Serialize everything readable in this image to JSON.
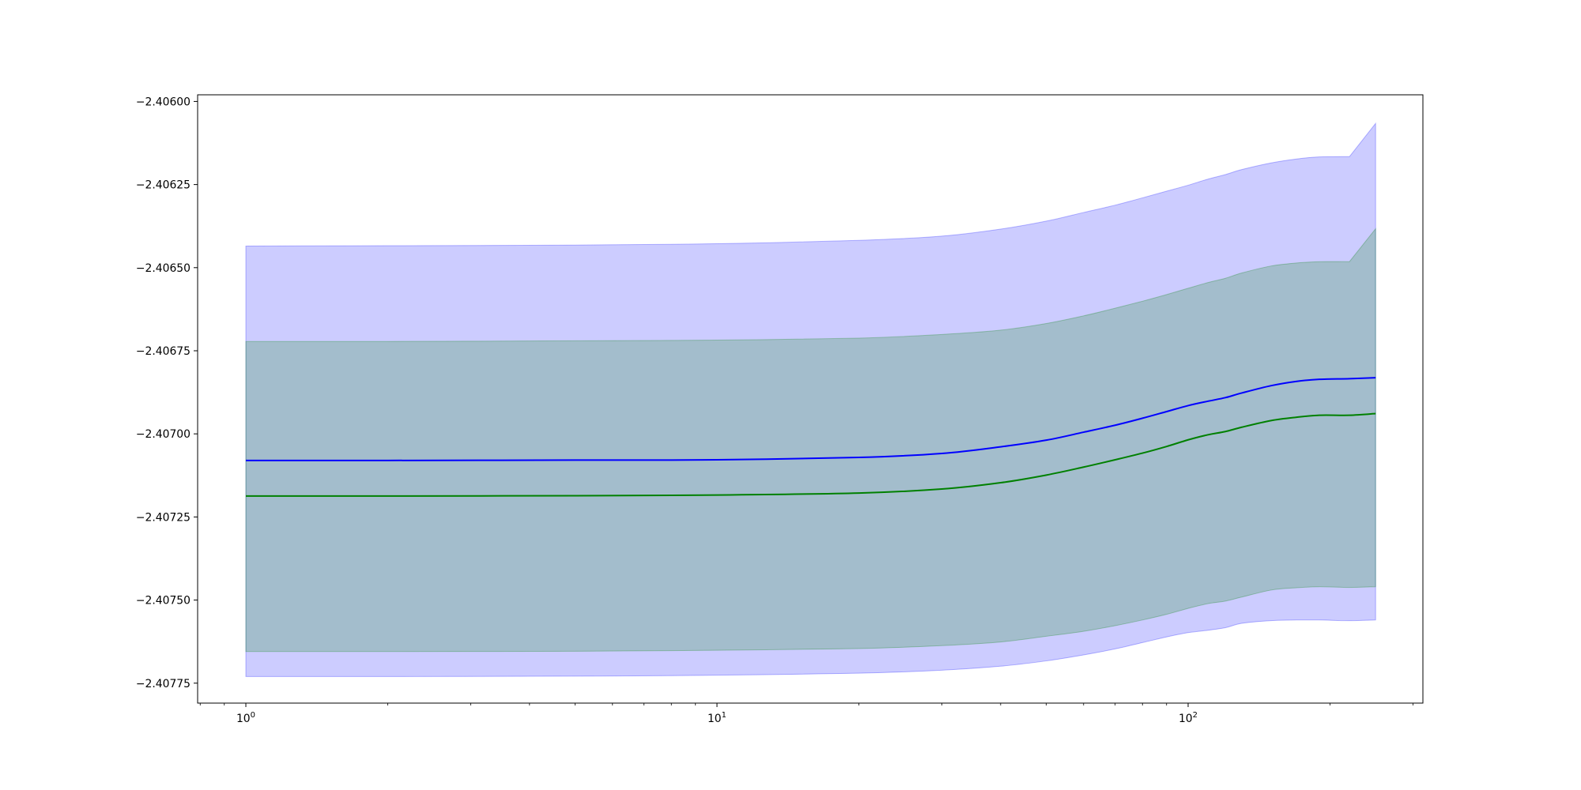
{
  "chart_data": {
    "type": "line",
    "title": "",
    "xlabel": "",
    "ylabel": "",
    "xscale": "log",
    "xlim": [
      0.79,
      315
    ],
    "ylim": [
      -2.40781,
      -2.40598
    ],
    "grid": false,
    "legend": "none",
    "x": [
      1,
      2,
      5,
      10,
      20,
      30,
      40,
      50,
      60,
      70,
      80,
      90,
      100,
      110,
      120,
      130,
      150,
      170,
      190,
      220,
      250
    ],
    "x_ticks": [
      {
        "value": 1,
        "base": "10",
        "exp": "0"
      },
      {
        "value": 10,
        "base": "10",
        "exp": "1"
      },
      {
        "value": 100,
        "base": "10",
        "exp": "2"
      }
    ],
    "y_ticks": [
      {
        "value": -2.406,
        "label": "−2.40600"
      },
      {
        "value": -2.40625,
        "label": "−2.40625"
      },
      {
        "value": -2.4065,
        "label": "−2.40650"
      },
      {
        "value": -2.40675,
        "label": "−2.40675"
      },
      {
        "value": -2.407,
        "label": "−2.40700"
      },
      {
        "value": -2.40725,
        "label": "−2.40725"
      },
      {
        "value": -2.4075,
        "label": "−2.40750"
      },
      {
        "value": -2.40775,
        "label": "−2.40775"
      }
    ],
    "series": [
      {
        "color": "#0000ff",
        "values": [
          -2.40708,
          -2.40708,
          -2.407079,
          -2.407078,
          -2.407071,
          -2.407059,
          -2.407039,
          -2.407019,
          -2.406995,
          -2.406974,
          -2.406953,
          -2.406933,
          -2.406915,
          -2.406902,
          -2.406891,
          -2.406877,
          -2.406855,
          -2.406842,
          -2.406836,
          -2.406834,
          -2.406831
        ],
        "band_lower": [
          -2.40773,
          -2.40773,
          -2.407729,
          -2.407726,
          -2.40772,
          -2.407711,
          -2.407699,
          -2.407683,
          -2.407665,
          -2.407647,
          -2.407628,
          -2.407611,
          -2.407598,
          -2.407591,
          -2.407583,
          -2.40757,
          -2.407562,
          -2.40756,
          -2.40756,
          -2.407562,
          -2.40756
        ],
        "band_upper": [
          -2.406435,
          -2.406434,
          -2.406432,
          -2.406428,
          -2.406418,
          -2.406405,
          -2.406384,
          -2.40636,
          -2.406334,
          -2.406312,
          -2.40629,
          -2.40627,
          -2.406252,
          -2.406234,
          -2.40622,
          -2.406205,
          -2.406185,
          -2.406173,
          -2.406167,
          -2.406166,
          -2.406066
        ],
        "band_color": "#0000ff",
        "band_opacity": 0.2
      },
      {
        "color": "#008000",
        "values": [
          -2.407187,
          -2.407187,
          -2.407186,
          -2.407184,
          -2.407178,
          -2.407166,
          -2.407147,
          -2.407124,
          -2.4071,
          -2.407078,
          -2.407058,
          -2.407038,
          -2.407018,
          -2.407003,
          -2.406993,
          -2.40698,
          -2.40696,
          -2.40695,
          -2.406944,
          -2.406944,
          -2.406939
        ],
        "band_lower": [
          -2.407655,
          -2.407655,
          -2.407654,
          -2.407651,
          -2.407646,
          -2.407637,
          -2.407626,
          -2.407609,
          -2.407594,
          -2.407577,
          -2.40756,
          -2.407543,
          -2.407525,
          -2.407511,
          -2.407503,
          -2.407491,
          -2.40747,
          -2.407463,
          -2.40746,
          -2.407462,
          -2.40746
        ],
        "band_upper": [
          -2.406722,
          -2.406722,
          -2.40672,
          -2.406718,
          -2.406712,
          -2.406701,
          -2.406688,
          -2.406668,
          -2.406645,
          -2.406622,
          -2.406601,
          -2.406581,
          -2.406562,
          -2.406545,
          -2.406532,
          -2.406516,
          -2.406495,
          -2.406486,
          -2.406482,
          -2.406482,
          -2.406383
        ],
        "band_color": "#008000",
        "band_opacity": 0.2
      }
    ]
  }
}
